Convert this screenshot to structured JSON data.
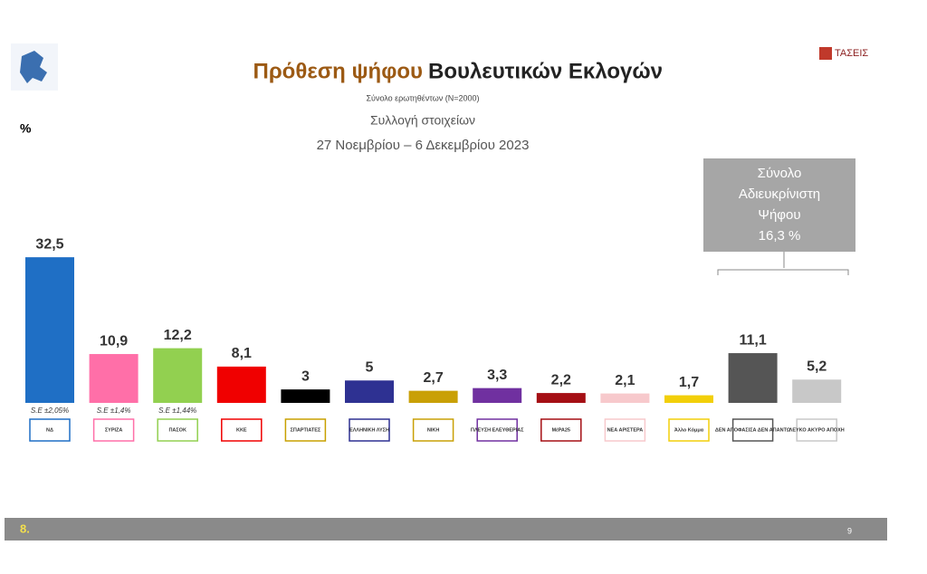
{
  "chart_data": {
    "type": "bar",
    "title_part1": "Πρόθεση ψήφου",
    "title_part2": "Βουλευτικών Εκλογών",
    "sample_note": "Σύνολο ερωτηθέντων (N=2000)",
    "subtitle": "Συλλογή στοιχείων",
    "date_range": "27 Νοεμβρίου – 6 Δεκεμβρίου  2023",
    "unit_label": "%",
    "brand": "ΤΑΣΕΙΣ",
    "page_number": "8.",
    "footer_page": "9",
    "undecided_box": [
      "Σύνολο",
      "Αδιευκρίνιστη",
      "Ψήφου",
      "16,3 %"
    ],
    "categories": [
      "ΝΔ",
      "ΣΥΡΙΖΑ",
      "ΠΑΣΟΚ",
      "ΚΚΕ",
      "ΣΠΑΡΤΙΑΤΕΣ",
      "ΕΛΛΗΝΙΚΗ ΛΥΣΗ",
      "ΝΙΚΗ",
      "ΠΛΕΥΣΗ ΕΛΕΥΘΕΡΙΑΣ",
      "ΜέΡΑ25",
      "ΝΕΑ ΑΡΙΣΤΕΡΑ",
      "Άλλο Κόμμα",
      "ΔΕΝ ΑΠΟΦΑΣΙΣΑ ΔΕΝ ΑΠΑΝΤΩ",
      "ΛΕΥΚΟ ΑΚΥΡΟ ΑΠΟΧΗ"
    ],
    "values": [
      32.5,
      10.9,
      12.2,
      8.1,
      3,
      5,
      2.7,
      3.3,
      2.2,
      2.1,
      1.7,
      11.1,
      5.2
    ],
    "value_labels": [
      "32,5",
      "10,9",
      "12,2",
      "8,1",
      "3",
      "5",
      "2,7",
      "3,3",
      "2,2",
      "2,1",
      "1,7",
      "11,1",
      "5,2"
    ],
    "error_labels": [
      "S.E ±2,05%",
      "S.E ±1,4%",
      "S.E ±1,44%",
      null,
      null,
      null,
      null,
      null,
      null,
      null,
      null,
      null,
      null
    ],
    "colors": [
      "#1f6fc5",
      "#ff6fa8",
      "#92d050",
      "#f00000",
      "#000000",
      "#2e3192",
      "#c9a006",
      "#7030a0",
      "#a50f14",
      "#f7c9cc",
      "#f2cf0a",
      "#555555",
      "#c8c8c8"
    ]
  }
}
